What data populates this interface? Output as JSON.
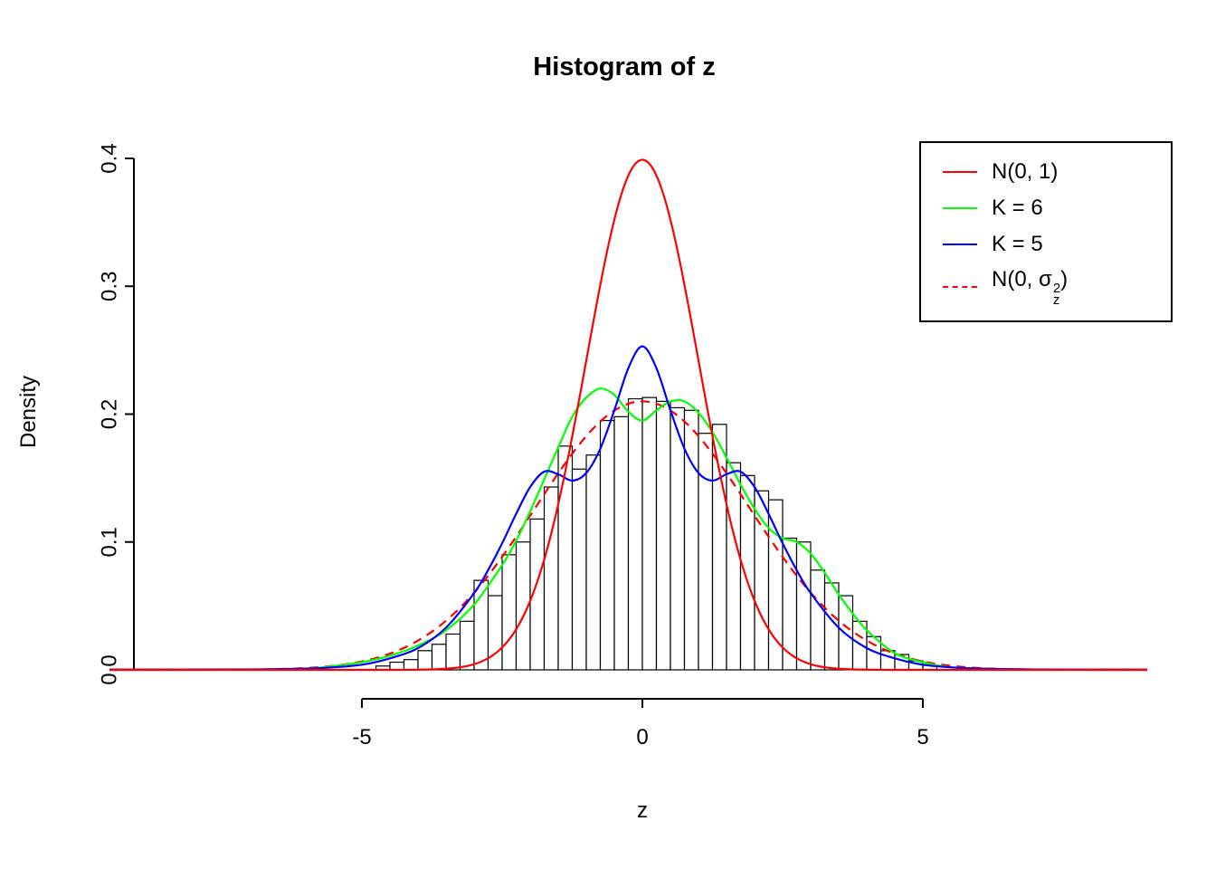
{
  "chart_data": {
    "type": "bar",
    "subtype": "histogram-with-density-curves",
    "title": "Histogram of z",
    "xlabel": "z",
    "ylabel": "Density",
    "xlim": [
      -9.5,
      9
    ],
    "ylim": [
      0,
      0.4
    ],
    "x_ticks": [
      -5,
      0,
      5
    ],
    "y_ticks": [
      0.0,
      0.1,
      0.2,
      0.3,
      0.4
    ],
    "grid": false,
    "legend_position": "top-right",
    "histogram": {
      "bin_start": -4.75,
      "bin_width": 0.25,
      "bar_fill": "#ffffff",
      "bar_stroke": "#000000",
      "densities": [
        0.003,
        0.006,
        0.008,
        0.015,
        0.02,
        0.028,
        0.038,
        0.07,
        0.058,
        0.09,
        0.1,
        0.118,
        0.143,
        0.175,
        0.157,
        0.168,
        0.195,
        0.198,
        0.212,
        0.213,
        0.21,
        0.205,
        0.203,
        0.185,
        0.192,
        0.162,
        0.152,
        0.14,
        0.133,
        0.103,
        0.1,
        0.078,
        0.068,
        0.058,
        0.038,
        0.026,
        0.015,
        0.012,
        0.007,
        0.004
      ]
    },
    "curves": [
      {
        "name": "N(0, σ_z²)",
        "color": "#ff0000",
        "style": "dashed",
        "kind": "normal",
        "mean": 0,
        "sd": 1.9,
        "peak": 0.21
      },
      {
        "name": "K = 6",
        "color": "#00ff00",
        "style": "solid",
        "kind": "points",
        "points": [
          [
            -9.5,
            0.0002
          ],
          [
            -7,
            0.0004
          ],
          [
            -6,
            0.001
          ],
          [
            -5.5,
            0.003
          ],
          [
            -5,
            0.006
          ],
          [
            -4.5,
            0.011
          ],
          [
            -4,
            0.019
          ],
          [
            -3.5,
            0.031
          ],
          [
            -3,
            0.051
          ],
          [
            -2.5,
            0.082
          ],
          [
            -2.25,
            0.101
          ],
          [
            -2,
            0.124
          ],
          [
            -1.75,
            0.149
          ],
          [
            -1.5,
            0.174
          ],
          [
            -1.25,
            0.198
          ],
          [
            -1,
            0.213
          ],
          [
            -0.75,
            0.22
          ],
          [
            -0.5,
            0.215
          ],
          [
            -0.25,
            0.202
          ],
          [
            0,
            0.195
          ],
          [
            0.25,
            0.203
          ],
          [
            0.5,
            0.21
          ],
          [
            0.75,
            0.21
          ],
          [
            1,
            0.201
          ],
          [
            1.25,
            0.186
          ],
          [
            1.5,
            0.166
          ],
          [
            1.75,
            0.145
          ],
          [
            2,
            0.126
          ],
          [
            2.25,
            0.111
          ],
          [
            2.5,
            0.103
          ],
          [
            2.75,
            0.1
          ],
          [
            3,
            0.091
          ],
          [
            3.25,
            0.076
          ],
          [
            3.5,
            0.059
          ],
          [
            3.75,
            0.044
          ],
          [
            4,
            0.031
          ],
          [
            4.5,
            0.013
          ],
          [
            5,
            0.006
          ],
          [
            5.5,
            0.002
          ],
          [
            6,
            0.001
          ],
          [
            7,
            0.0003
          ],
          [
            9,
            0.0002
          ]
        ]
      },
      {
        "name": "K = 5",
        "color": "#0000ff",
        "style": "solid",
        "kind": "points",
        "points": [
          [
            -9.5,
            0.0002
          ],
          [
            -7,
            0.0003
          ],
          [
            -6,
            0.001
          ],
          [
            -5.5,
            0.002
          ],
          [
            -5,
            0.004
          ],
          [
            -4.5,
            0.009
          ],
          [
            -4,
            0.017
          ],
          [
            -3.5,
            0.033
          ],
          [
            -3,
            0.06
          ],
          [
            -2.75,
            0.078
          ],
          [
            -2.5,
            0.099
          ],
          [
            -2.25,
            0.122
          ],
          [
            -2,
            0.143
          ],
          [
            -1.75,
            0.155
          ],
          [
            -1.5,
            0.153
          ],
          [
            -1.25,
            0.148
          ],
          [
            -1,
            0.154
          ],
          [
            -0.75,
            0.173
          ],
          [
            -0.5,
            0.203
          ],
          [
            -0.25,
            0.236
          ],
          [
            0,
            0.253
          ],
          [
            0.25,
            0.236
          ],
          [
            0.5,
            0.203
          ],
          [
            0.75,
            0.173
          ],
          [
            1,
            0.154
          ],
          [
            1.25,
            0.148
          ],
          [
            1.5,
            0.153
          ],
          [
            1.75,
            0.155
          ],
          [
            2,
            0.143
          ],
          [
            2.25,
            0.122
          ],
          [
            2.5,
            0.099
          ],
          [
            2.75,
            0.078
          ],
          [
            3,
            0.06
          ],
          [
            3.5,
            0.033
          ],
          [
            4,
            0.017
          ],
          [
            4.5,
            0.009
          ],
          [
            5,
            0.004
          ],
          [
            5.5,
            0.002
          ],
          [
            6,
            0.001
          ],
          [
            7,
            0.0003
          ],
          [
            9,
            0.0002
          ]
        ]
      },
      {
        "name": "N(0, 1)",
        "color": "#ff0000",
        "style": "solid",
        "kind": "normal",
        "mean": 0,
        "sd": 1,
        "peak": 0.3989
      }
    ],
    "legend": {
      "entries": [
        {
          "label": "N(0, 1)",
          "color": "#ff0000",
          "dash": false
        },
        {
          "label": "K = 6",
          "color": "#00ff00",
          "dash": false
        },
        {
          "label": "K = 5",
          "color": "#0000ff",
          "dash": false
        },
        {
          "label": "N(0, σ_z²)",
          "color": "#ff0000",
          "dash": true,
          "label_parts": {
            "prefix": "N(0, ",
            "symbol": "σ",
            "sup": "2",
            "sub": "z",
            "suffix": ")"
          }
        }
      ]
    }
  }
}
